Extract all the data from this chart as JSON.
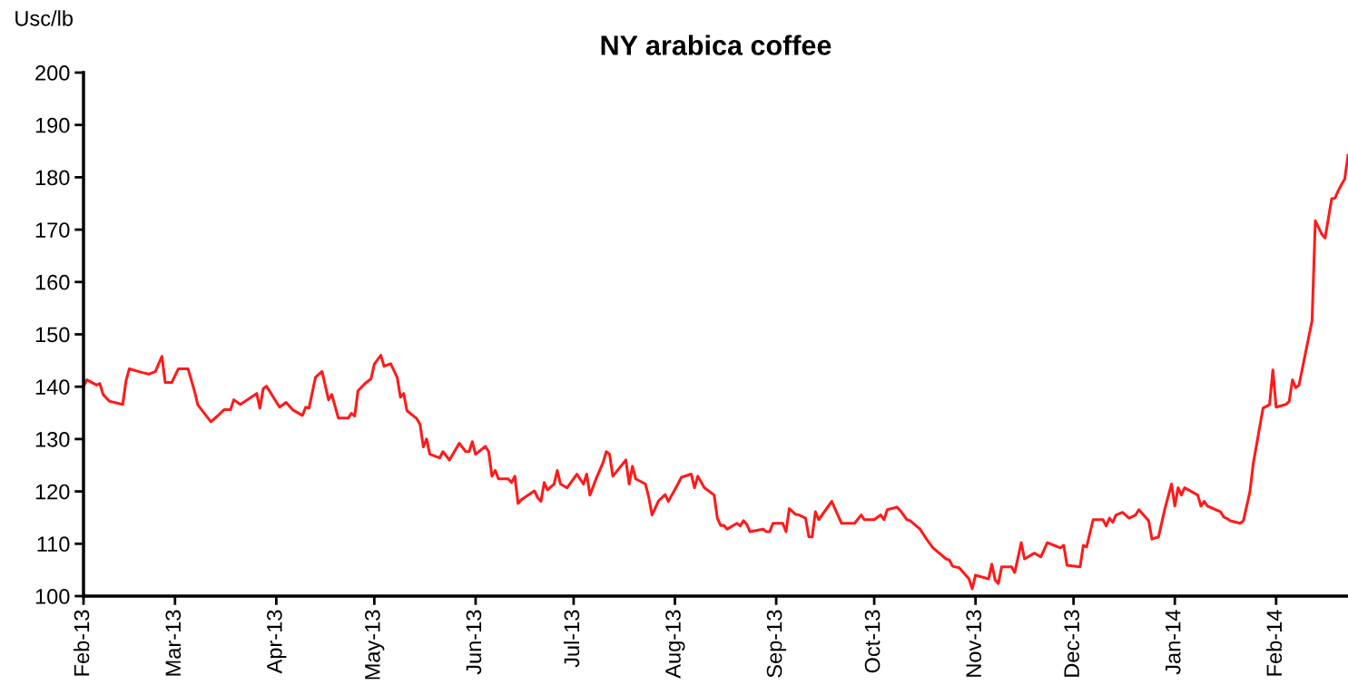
{
  "chart_data": {
    "type": "line",
    "title": "NY arabica coffee",
    "ylabel": "Usc/lb",
    "x": [
      "2013-02-01",
      "2013-02-02",
      "2013-02-05",
      "2013-02-06",
      "2013-02-07",
      "2013-02-09",
      "2013-02-13",
      "2013-02-14",
      "2013-02-15",
      "2013-02-19",
      "2013-02-21",
      "2013-02-23",
      "2013-02-25",
      "2013-02-26",
      "2013-02-28",
      "2013-03-02",
      "2013-03-05",
      "2013-03-07",
      "2013-03-08",
      "2013-03-12",
      "2013-03-14",
      "2013-03-16",
      "2013-03-18",
      "2013-03-19",
      "2013-03-21",
      "2013-03-26",
      "2013-03-27",
      "2013-03-28",
      "2013-03-29",
      "2013-04-02",
      "2013-04-04",
      "2013-04-06",
      "2013-04-09",
      "2013-04-10",
      "2013-04-11",
      "2013-04-13",
      "2013-04-15",
      "2013-04-17",
      "2013-04-18",
      "2013-04-20",
      "2013-04-23",
      "2013-04-24",
      "2013-04-25",
      "2013-04-26",
      "2013-04-28",
      "2013-04-30",
      "2013-05-01",
      "2013-05-03",
      "2013-05-04",
      "2013-05-06",
      "2013-05-08",
      "2013-05-09",
      "2013-05-10",
      "2013-05-11",
      "2013-05-14",
      "2013-05-15",
      "2013-05-16",
      "2013-05-17",
      "2013-05-18",
      "2013-05-21",
      "2013-05-22",
      "2013-05-24",
      "2013-05-27",
      "2013-05-29",
      "2013-05-30",
      "2013-05-31",
      "2013-06-01",
      "2013-06-04",
      "2013-06-05",
      "2013-06-06",
      "2013-06-07",
      "2013-06-08",
      "2013-06-11",
      "2013-06-12",
      "2013-06-13",
      "2013-06-14",
      "2013-06-15",
      "2013-06-19",
      "2013-06-20",
      "2013-06-21",
      "2013-06-22",
      "2013-06-23",
      "2013-06-25",
      "2013-06-26",
      "2013-06-27",
      "2013-06-29",
      "2013-07-02",
      "2013-07-04",
      "2013-07-05",
      "2013-07-06",
      "2013-07-08",
      "2013-07-10",
      "2013-07-11",
      "2013-07-12",
      "2013-07-13",
      "2013-07-17",
      "2013-07-18",
      "2013-07-19",
      "2013-07-20",
      "2013-07-23",
      "2013-07-24",
      "2013-07-25",
      "2013-07-27",
      "2013-07-29",
      "2013-07-30",
      "2013-08-02",
      "2013-08-03",
      "2013-08-06",
      "2013-08-07",
      "2013-08-08",
      "2013-08-10",
      "2013-08-13",
      "2013-08-14",
      "2013-08-15",
      "2013-08-16",
      "2013-08-17",
      "2013-08-20",
      "2013-08-21",
      "2013-08-22",
      "2013-08-23",
      "2013-08-24",
      "2013-08-28",
      "2013-08-29",
      "2013-08-30",
      "2013-08-31",
      "2013-09-03",
      "2013-09-04",
      "2013-09-05",
      "2013-09-07",
      "2013-09-08",
      "2013-09-10",
      "2013-09-11",
      "2013-09-12",
      "2013-09-13",
      "2013-09-14",
      "2013-09-17",
      "2013-09-18",
      "2013-09-21",
      "2013-09-25",
      "2013-09-27",
      "2013-09-28",
      "2013-10-01",
      "2013-10-03",
      "2013-10-04",
      "2013-10-05",
      "2013-10-08",
      "2013-10-09",
      "2013-10-11",
      "2013-10-12",
      "2013-10-15",
      "2013-10-17",
      "2013-10-19",
      "2013-10-23",
      "2013-10-24",
      "2013-10-25",
      "2013-10-27",
      "2013-10-30",
      "2013-10-31",
      "2013-11-01",
      "2013-11-05",
      "2013-11-06",
      "2013-11-07",
      "2013-11-08",
      "2013-11-09",
      "2013-11-12",
      "2013-11-13",
      "2013-11-15",
      "2013-11-16",
      "2013-11-19",
      "2013-11-21",
      "2013-11-23",
      "2013-11-25",
      "2013-11-27",
      "2013-11-28",
      "2013-11-29",
      "2013-12-03",
      "2013-12-04",
      "2013-12-05",
      "2013-12-07",
      "2013-12-10",
      "2013-12-11",
      "2013-12-12",
      "2013-12-13",
      "2013-12-14",
      "2013-12-16",
      "2013-12-18",
      "2013-12-20",
      "2013-12-21",
      "2013-12-24",
      "2013-12-25",
      "2013-12-27",
      "2013-12-29",
      "2013-12-31",
      "2014-01-01",
      "2014-01-02",
      "2014-01-03",
      "2014-01-04",
      "2014-01-08",
      "2014-01-09",
      "2014-01-10",
      "2014-01-11",
      "2014-01-15",
      "2014-01-16",
      "2014-01-17",
      "2014-01-18",
      "2014-01-21",
      "2014-01-22",
      "2014-01-23",
      "2014-01-24",
      "2014-01-25",
      "2014-01-28",
      "2014-01-30",
      "2014-01-31",
      "2014-02-01",
      "2014-02-04",
      "2014-02-05",
      "2014-02-06",
      "2014-02-07",
      "2014-02-08",
      "2014-02-12",
      "2014-02-13",
      "2014-02-15",
      "2014-02-16",
      "2014-02-18",
      "2014-02-19",
      "2014-02-20",
      "2014-02-21",
      "2014-02-22",
      "2014-02-23"
    ],
    "series": [
      {
        "color": "#ff1a1a",
        "values": [
          140.0,
          141.3,
          140.3,
          140.6,
          138.5,
          137.2,
          136.6,
          141.1,
          143.4,
          142.7,
          142.4,
          142.9,
          145.8,
          140.8,
          140.8,
          143.4,
          143.4,
          139.1,
          136.5,
          133.3,
          134.4,
          135.6,
          135.6,
          137.5,
          136.6,
          138.7,
          135.9,
          139.6,
          140.1,
          136.1,
          137.0,
          135.6,
          134.5,
          136.1,
          135.9,
          141.8,
          142.9,
          137.5,
          138.5,
          134.0,
          134.0,
          134.9,
          134.4,
          139.2,
          140.5,
          141.5,
          144.3,
          146.0,
          143.9,
          144.4,
          141.8,
          138.0,
          138.7,
          135.4,
          133.9,
          132.8,
          128.5,
          130.0,
          127.1,
          126.4,
          127.6,
          126.0,
          129.2,
          127.6,
          127.6,
          129.5,
          127.1,
          128.6,
          127.6,
          122.9,
          124.0,
          122.4,
          122.4,
          121.7,
          122.9,
          117.7,
          118.4,
          120.1,
          118.8,
          118.1,
          121.7,
          120.3,
          121.4,
          124.0,
          121.4,
          120.7,
          123.3,
          121.4,
          123.3,
          119.3,
          122.6,
          125.5,
          127.6,
          127.1,
          122.9,
          126.0,
          121.4,
          124.8,
          122.4,
          121.4,
          118.9,
          115.5,
          118.2,
          119.4,
          118.1,
          121.5,
          122.7,
          123.3,
          120.7,
          122.9,
          120.7,
          119.3,
          114.9,
          113.5,
          113.5,
          112.8,
          113.9,
          113.4,
          114.4,
          113.7,
          112.3,
          112.8,
          112.3,
          112.3,
          113.9,
          113.9,
          112.3,
          116.7,
          115.6,
          115.5,
          114.9,
          111.3,
          111.3,
          116.1,
          114.6,
          117.2,
          118.1,
          113.9,
          113.9,
          115.5,
          114.6,
          114.6,
          115.5,
          114.6,
          116.5,
          117.0,
          116.3,
          114.6,
          114.4,
          112.8,
          110.9,
          109.2,
          107.1,
          106.9,
          105.7,
          105.4,
          103.3,
          101.4,
          104.0,
          103.3,
          106.1,
          103.1,
          102.4,
          105.6,
          105.6,
          104.5,
          110.2,
          107.1,
          108.2,
          107.5,
          110.2,
          109.7,
          109.2,
          109.7,
          105.9,
          105.6,
          109.7,
          109.4,
          114.6,
          114.6,
          113.4,
          114.9,
          114.1,
          115.5,
          116.0,
          114.9,
          115.5,
          116.5,
          114.4,
          110.9,
          111.3,
          116.8,
          121.4,
          117.2,
          120.7,
          119.3,
          120.7,
          119.3,
          117.2,
          118.1,
          117.2,
          116.1,
          115.1,
          114.8,
          114.4,
          113.9,
          114.4,
          117.2,
          120.0,
          125.3,
          135.9,
          136.6,
          143.2,
          136.1,
          136.6,
          137.2,
          141.3,
          139.8,
          140.3,
          152.6,
          171.7,
          169.1,
          168.4,
          175.9,
          176.0,
          177.4,
          178.6,
          179.7,
          184.2
        ]
      }
    ],
    "xlim": [
      "2013-02-01",
      "2014-02-23"
    ],
    "xticks": [
      {
        "value": "2013-02-01",
        "label": "Feb-13"
      },
      {
        "value": "2013-03-01",
        "label": "Mar-13"
      },
      {
        "value": "2013-04-01",
        "label": "Apr-13"
      },
      {
        "value": "2013-05-01",
        "label": "May-13"
      },
      {
        "value": "2013-06-01",
        "label": "Jun-13"
      },
      {
        "value": "2013-07-01",
        "label": "Jul-13"
      },
      {
        "value": "2013-08-01",
        "label": "Aug-13"
      },
      {
        "value": "2013-09-01",
        "label": "Sep-13"
      },
      {
        "value": "2013-10-01",
        "label": "Oct-13"
      },
      {
        "value": "2013-11-01",
        "label": "Nov-13"
      },
      {
        "value": "2013-12-01",
        "label": "Dec-13"
      },
      {
        "value": "2014-01-01",
        "label": "Jan-14"
      },
      {
        "value": "2014-02-01",
        "label": "Feb-14"
      }
    ],
    "ylim": [
      100,
      200
    ],
    "yticks": [
      100,
      110,
      120,
      130,
      140,
      150,
      160,
      170,
      180,
      190,
      200
    ],
    "grid": false,
    "marker": "none",
    "line_style": "solid"
  }
}
